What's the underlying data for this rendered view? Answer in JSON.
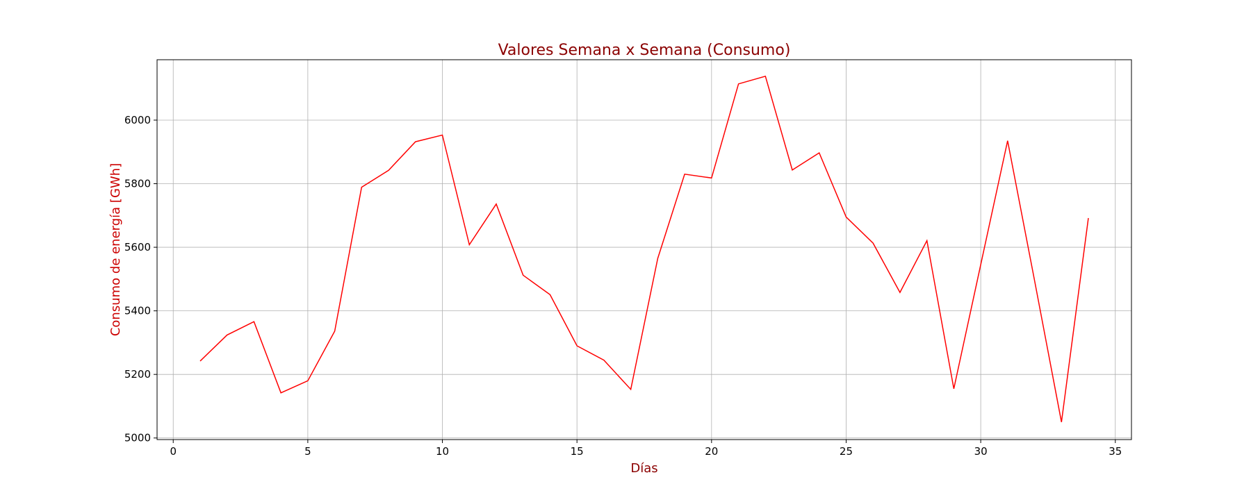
{
  "chart_data": {
    "type": "line",
    "title": "Valores Semana x Semana (Consumo)",
    "xlabel": "Días",
    "ylabel": "Consumo de energía [GWh]",
    "xlim": [
      -0.6,
      35.6
    ],
    "ylim": [
      4995,
      6190
    ],
    "xticks": [
      0,
      5,
      10,
      15,
      20,
      25,
      30,
      35
    ],
    "yticks": [
      5000,
      5200,
      5400,
      5600,
      5800,
      6000
    ],
    "grid": true,
    "colors": {
      "line": "#ff0000",
      "title": "#8b0000",
      "xlabel": "#8b0000",
      "ylabel": "#cc0000"
    },
    "series": [
      {
        "x": [
          1,
          2,
          3,
          4,
          5,
          6,
          7,
          8,
          9,
          10,
          11,
          12,
          13,
          14,
          15,
          16,
          17,
          18,
          19,
          20,
          21,
          22,
          23,
          24,
          25,
          26,
          27,
          28,
          29,
          30,
          31,
          32,
          33,
          34
        ],
        "values": [
          5242,
          5324,
          5366,
          5142,
          5180,
          5336,
          5789,
          5842,
          5932,
          5953,
          5608,
          5736,
          5512,
          5451,
          5290,
          5245,
          5153,
          5565,
          5830,
          5818,
          6114,
          6138,
          5843,
          5897,
          5695,
          5613,
          5458,
          5621,
          5155,
          5545,
          5935,
          5495,
          5050,
          5692
        ]
      }
    ]
  }
}
